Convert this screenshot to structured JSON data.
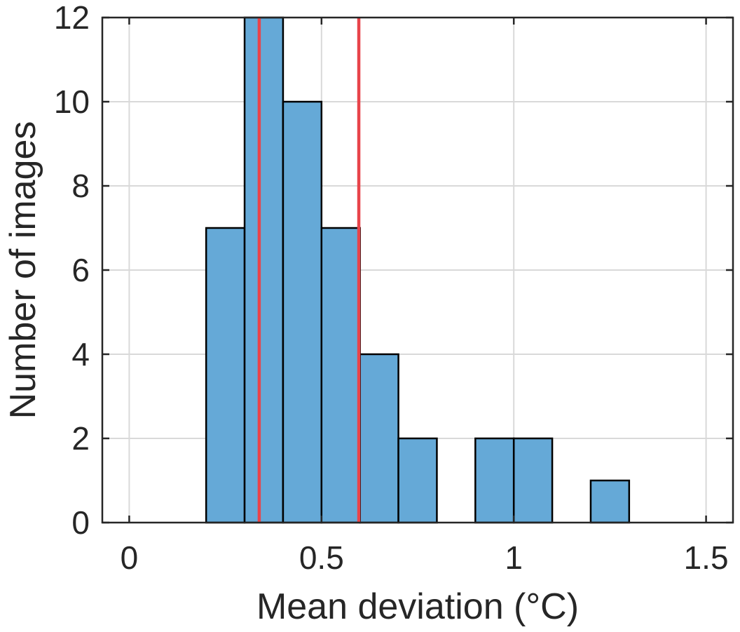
{
  "chart_data": {
    "type": "bar",
    "subtype": "histogram",
    "xlabel": "Mean deviation (°C)",
    "ylabel": "Number of images",
    "xlim": [
      -0.07,
      1.57
    ],
    "ylim": [
      0,
      12
    ],
    "xticks": [
      0,
      0.5,
      1,
      1.5
    ],
    "xtick_labels": [
      "0",
      "0.5",
      "1",
      "1.5"
    ],
    "yticks": [
      0,
      2,
      4,
      6,
      8,
      10,
      12
    ],
    "ytick_labels": [
      "0",
      "2",
      "4",
      "6",
      "8",
      "10",
      "12"
    ],
    "grid": true,
    "bins": [
      {
        "x0": 0.2,
        "x1": 0.3,
        "count": 7
      },
      {
        "x0": 0.3,
        "x1": 0.4,
        "count": 12
      },
      {
        "x0": 0.4,
        "x1": 0.5,
        "count": 10
      },
      {
        "x0": 0.5,
        "x1": 0.6,
        "count": 7
      },
      {
        "x0": 0.6,
        "x1": 0.7,
        "count": 4
      },
      {
        "x0": 0.7,
        "x1": 0.8,
        "count": 2
      },
      {
        "x0": 0.9,
        "x1": 1.0,
        "count": 2
      },
      {
        "x0": 1.0,
        "x1": 1.1,
        "count": 2
      },
      {
        "x0": 1.2,
        "x1": 1.3,
        "count": 1
      }
    ],
    "vertical_lines": [
      0.338,
      0.597
    ],
    "colors": {
      "bar_fill": "#65a9d7",
      "bar_edge": "#000000",
      "vline": "#e8444a",
      "grid": "#d9d9d9",
      "axis": "#262626"
    }
  }
}
